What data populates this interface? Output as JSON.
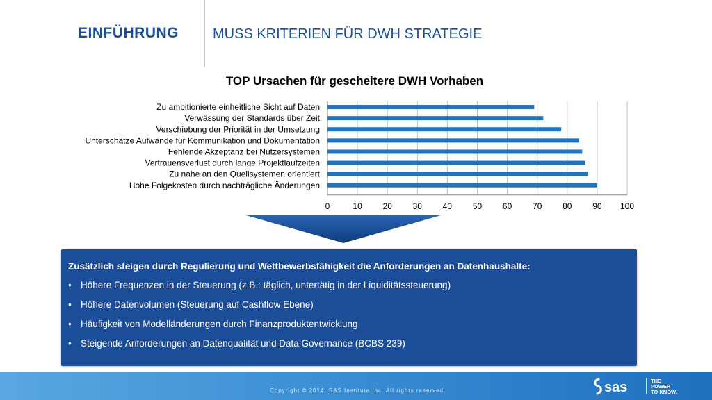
{
  "header": {
    "section": "EINFÜHRUNG",
    "title": "MUSS KRITERIEN FÜR DWH STRATEGIE"
  },
  "chart_data": {
    "type": "bar",
    "orientation": "horizontal",
    "title": "TOP Ursachen für gescheitere DWH Vorhaben",
    "categories": [
      "Zu ambitionierte einheitliche Sicht auf Daten",
      "Verwässung der Standards über Zeit",
      "Verschiebung der Priorität in der Umsetzung",
      "Unterschätze Aufwände für Kommunikation und Dokumentation",
      "Fehlende Akzeptanz bei Nutzersystemen",
      "Vertrauensverlust durch lange Projektlaufzeiten",
      "Zu nahe an den Quellsystemen orientiert",
      "Hohe Folgekosten durch nachträgliche Änderungen"
    ],
    "values": [
      69,
      72,
      78,
      84,
      85,
      86,
      87,
      90
    ],
    "xlim": [
      0,
      100
    ],
    "xticks": [
      "0",
      "10",
      "20",
      "30",
      "40",
      "50",
      "60",
      "70",
      "80",
      "90",
      "100"
    ],
    "grid": true,
    "legend": "none",
    "bar_color": "#1f73bf"
  },
  "info": {
    "heading": "Zusätzlich steigen durch Regulierung und Wettbewerbsfähigkeit die Anforderungen an Datenhaushalte:",
    "bullet_symbol": "•",
    "bullets": [
      "Höhere Frequenzen in der Steuerung (z.B.: täglich, untertätig in der Liquiditätssteuerung)",
      "Höhere Datenvolumen (Steuerung auf Cashflow Ebene)",
      "Häufigkeit von Modelländerungen durch Finanzproduktentwicklung",
      "Steigende Anforderungen an Datenqualität und Data Governance (BCBS 239)"
    ]
  },
  "footer": {
    "copyright": "Copyright © 2014, SAS Institute Inc. All rights reserved.",
    "logo_text": "sas",
    "tagline": [
      "THE",
      "POWER",
      "TO KNOW."
    ]
  }
}
